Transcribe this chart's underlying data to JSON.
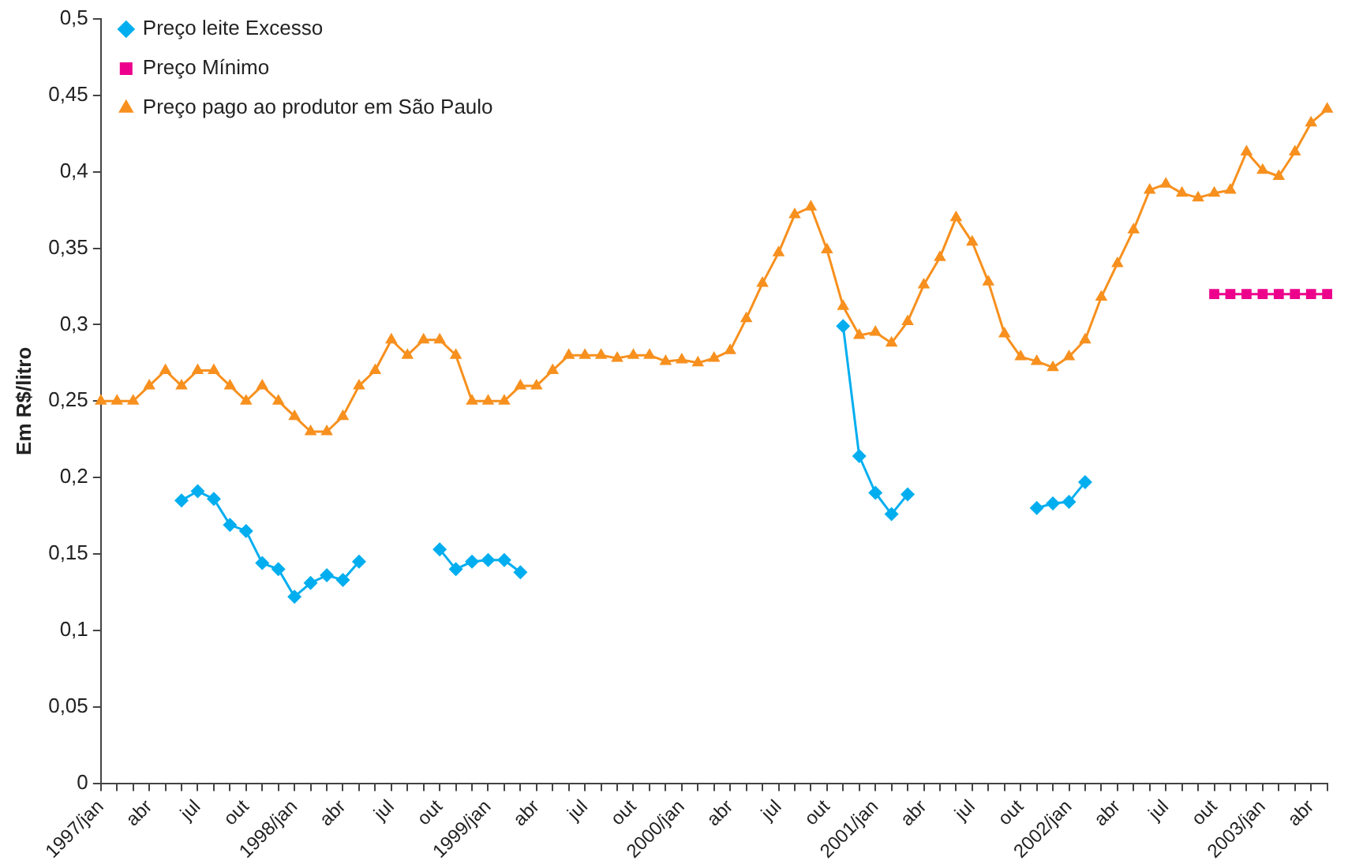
{
  "chart_data": {
    "type": "line",
    "ylabel": "Em R$/litro",
    "categories": [
      "1997/jan",
      null,
      null,
      "abr",
      null,
      null,
      "jul",
      null,
      null,
      "out",
      null,
      null,
      "1998/jan",
      null,
      null,
      "abr",
      null,
      null,
      "jul",
      null,
      null,
      "out",
      null,
      null,
      "1999/jan",
      null,
      null,
      "abr",
      null,
      null,
      "jul",
      null,
      null,
      "out",
      null,
      null,
      "2000/jan",
      null,
      null,
      "abr",
      null,
      null,
      "jul",
      null,
      null,
      "out",
      null,
      null,
      "2001/jan",
      null,
      null,
      "abr",
      null,
      null,
      "jul",
      null,
      null,
      "out",
      null,
      null,
      "2002/jan",
      null,
      null,
      "abr",
      null,
      null,
      "jul",
      null,
      null,
      "out",
      null,
      null,
      "2003/jan",
      null,
      null,
      "abr",
      null
    ],
    "series": [
      {
        "name": "Preço leite Excesso",
        "color": "#00aeef",
        "marker": "diamond",
        "values": [
          null,
          null,
          null,
          null,
          null,
          0.185,
          0.191,
          0.186,
          0.169,
          0.165,
          0.144,
          0.14,
          0.122,
          0.131,
          0.136,
          0.133,
          0.145,
          null,
          null,
          null,
          null,
          0.153,
          0.14,
          0.145,
          0.146,
          0.146,
          0.138,
          null,
          null,
          null,
          null,
          null,
          null,
          null,
          null,
          null,
          null,
          null,
          null,
          null,
          null,
          null,
          null,
          null,
          null,
          null,
          0.299,
          0.214,
          0.19,
          0.176,
          0.189,
          null,
          null,
          null,
          null,
          null,
          null,
          null,
          0.18,
          0.183,
          0.184,
          0.197,
          null,
          null,
          null,
          null,
          null,
          null,
          null,
          null,
          null,
          null,
          null,
          null,
          null,
          null,
          null
        ]
      },
      {
        "name": "Preço Mínimo",
        "color": "#ec008c",
        "marker": "square",
        "values": [
          null,
          null,
          null,
          null,
          null,
          null,
          null,
          null,
          null,
          null,
          null,
          null,
          null,
          null,
          null,
          null,
          null,
          null,
          null,
          null,
          null,
          null,
          null,
          null,
          null,
          null,
          null,
          null,
          null,
          null,
          null,
          null,
          null,
          null,
          null,
          null,
          null,
          null,
          null,
          null,
          null,
          null,
          null,
          null,
          null,
          null,
          null,
          null,
          null,
          null,
          null,
          null,
          null,
          null,
          null,
          null,
          null,
          null,
          null,
          null,
          null,
          null,
          null,
          null,
          null,
          null,
          null,
          null,
          null,
          0.32,
          0.32,
          0.32,
          0.32,
          0.32,
          0.32,
          0.32,
          0.32
        ]
      },
      {
        "name": "Preço pago ao produtor em São Paulo",
        "color": "#f7901e",
        "marker": "triangle",
        "values": [
          0.25,
          0.25,
          0.25,
          0.26,
          0.27,
          0.26,
          0.27,
          0.27,
          0.26,
          0.25,
          0.26,
          0.25,
          0.24,
          0.23,
          0.23,
          0.24,
          0.26,
          0.27,
          0.29,
          0.28,
          0.29,
          0.29,
          0.28,
          0.25,
          0.25,
          0.25,
          0.26,
          0.26,
          0.27,
          0.28,
          0.28,
          0.28,
          0.278,
          0.28,
          0.28,
          0.276,
          0.277,
          0.275,
          0.278,
          0.283,
          0.304,
          0.327,
          0.347,
          0.372,
          0.377,
          0.349,
          0.312,
          0.293,
          0.295,
          0.288,
          0.302,
          0.326,
          0.344,
          0.37,
          0.354,
          0.328,
          0.294,
          0.279,
          0.276,
          0.272,
          0.279,
          0.29,
          0.318,
          0.34,
          0.362,
          0.388,
          0.392,
          0.386,
          0.383,
          0.386,
          0.388,
          0.413,
          0.401,
          0.397,
          0.413,
          0.432,
          0.441
        ]
      }
    ],
    "ylim": [
      0,
      0.5
    ],
    "yticks": [
      0,
      {
        "value": 0.05,
        "label": "0,05"
      },
      {
        "value": 0.1,
        "label": "0,1"
      },
      {
        "value": 0.15,
        "label": "0,15"
      },
      {
        "value": 0.2,
        "label": "0,2"
      },
      {
        "value": 0.25,
        "label": "0,25"
      },
      {
        "value": 0.3,
        "label": "0,3"
      },
      {
        "value": 0.35,
        "label": "0,35"
      },
      {
        "value": 0.4,
        "label": "0,4"
      },
      {
        "value": 0.45,
        "label": "0,45"
      },
      {
        "value": 0.5,
        "label": "0,5"
      }
    ],
    "grid": false,
    "legend": "top left",
    "line_style": "solid"
  }
}
